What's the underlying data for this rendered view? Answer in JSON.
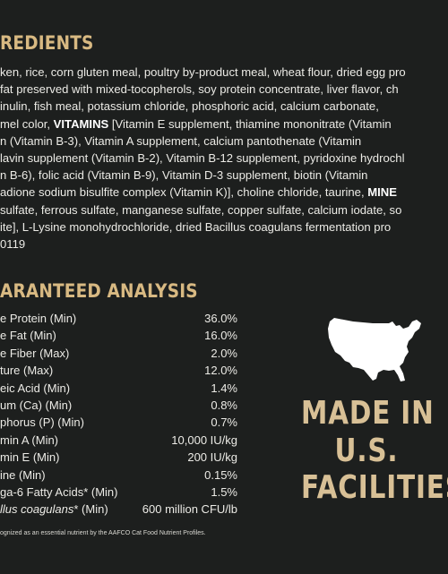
{
  "ingredients": {
    "heading": "REDIENTS",
    "lines": [
      {
        "pre": "ken, rice, corn gluten meal, poultry by-product meal, wheat flour, dried egg pro",
        "bold": "",
        "post": ""
      },
      {
        "pre": "fat preserved with mixed-tocopherols, soy protein concentrate, liver flavor, ch",
        "bold": "",
        "post": ""
      },
      {
        "pre": " inulin, fish meal, potassium chloride, phosphoric acid, calcium carbonate,",
        "bold": "",
        "post": ""
      },
      {
        "pre": "mel color, ",
        "bold": "VITAMINS",
        "post": " [Vitamin E supplement, thiamine mononitrate (Vitamin"
      },
      {
        "pre": "n (Vitamin B-3), Vitamin A supplement, calcium pantothenate (Vitamin",
        "bold": "",
        "post": ""
      },
      {
        "pre": "lavin supplement (Vitamin B-2), Vitamin B-12 supplement, pyridoxine hydrochl",
        "bold": "",
        "post": ""
      },
      {
        "pre": "n B-6), folic acid (Vitamin B-9), Vitamin D-3 supplement, biotin (Vitamin",
        "bold": "",
        "post": ""
      },
      {
        "pre": "adione sodium bisulfite complex (Vitamin K)], choline chloride, taurine, ",
        "bold": "MINE",
        "post": ""
      },
      {
        "pre": " sulfate, ferrous sulfate, manganese sulfate, copper sulfate, calcium iodate, so",
        "bold": "",
        "post": ""
      },
      {
        "pre": "ite], L-Lysine monohydrochloride, dried Bacillus coagulans fermentation pro",
        "bold": "",
        "post": ""
      },
      {
        "pre": "0119",
        "bold": "",
        "post": ""
      }
    ]
  },
  "analysis": {
    "heading": "ARANTEED ANALYSIS",
    "rows": [
      {
        "label": "e Protein (Min)",
        "label_italic": "",
        "label_rest": "",
        "value": "36.0%"
      },
      {
        "label": "e Fat (Min)",
        "label_italic": "",
        "label_rest": "",
        "value": "16.0%"
      },
      {
        "label": "e Fiber (Max)",
        "label_italic": "",
        "label_rest": "",
        "value": "2.0%"
      },
      {
        "label": "ture (Max)",
        "label_italic": "",
        "label_rest": "",
        "value": "12.0%"
      },
      {
        "label": "eic Acid (Min)",
        "label_italic": "",
        "label_rest": "",
        "value": "1.4%"
      },
      {
        "label": "um (Ca) (Min)",
        "label_italic": "",
        "label_rest": "",
        "value": "0.8%"
      },
      {
        "label": "phorus (P) (Min)",
        "label_italic": "",
        "label_rest": "",
        "value": "0.7%"
      },
      {
        "label": "min A (Min)",
        "label_italic": "",
        "label_rest": "",
        "value": "10,000 IU/kg"
      },
      {
        "label": "min E (Min)",
        "label_italic": "",
        "label_rest": "",
        "value": "200 IU/kg"
      },
      {
        "label": "ine (Min)",
        "label_italic": "",
        "label_rest": "",
        "value": "0.15%"
      },
      {
        "label": "ga-6 Fatty Acids* (Min)",
        "label_italic": "",
        "label_rest": "",
        "value": "1.5%"
      },
      {
        "label": "",
        "label_italic": "llus coagulans",
        "label_rest": "* (Min)",
        "value": "600 million CFU/lb"
      }
    ],
    "footnote": "ognized as an essential nutrient by the AAFCO Cat Food Nutrient Profiles."
  },
  "badge": {
    "icon": "usa-map-icon",
    "line1": "MADE IN",
    "line2": "U.S.",
    "line3": "FACILITIES"
  }
}
